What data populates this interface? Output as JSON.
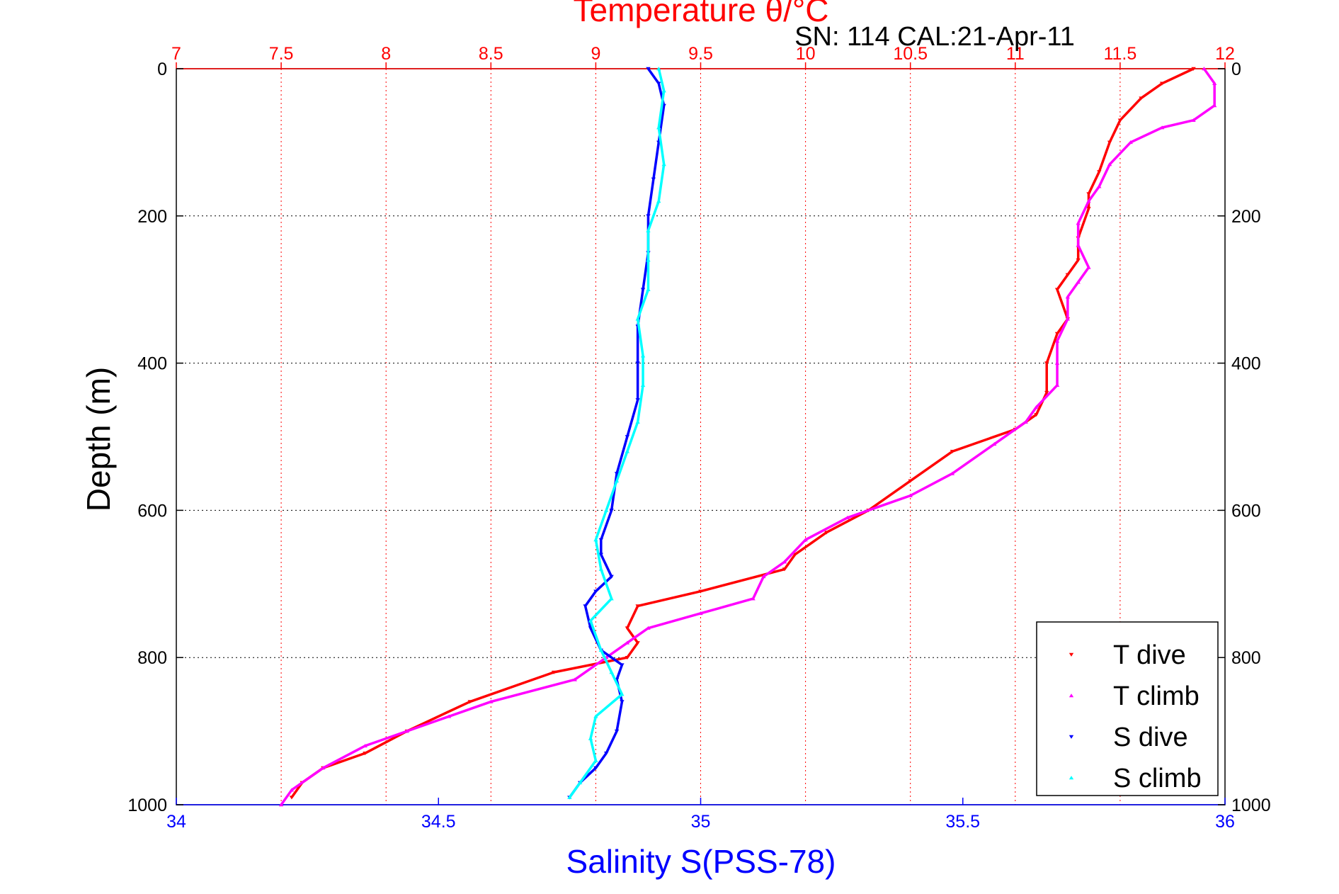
{
  "chart_data": {
    "type": "scatter",
    "title": "Temperature θ/°C",
    "subtitle": "SN: 114  CAL:21-Apr-11",
    "xlabel_bottom": "Salinity S(PSS-78)",
    "xlabel_top": "Temperature θ/°C",
    "ylabel": "Depth (m)",
    "x_bottom_lim": [
      34,
      36
    ],
    "x_top_lim": [
      7,
      12
    ],
    "ylim": [
      0,
      1000
    ],
    "y_reversed": true,
    "x_bottom_ticks": [
      "34",
      "34.5",
      "35",
      "35.5",
      "36"
    ],
    "x_top_ticks": [
      "7",
      "7.5",
      "8",
      "8.5",
      "9",
      "9.5",
      "10",
      "10.5",
      "11",
      "11.5",
      "12"
    ],
    "y_ticks": [
      "0",
      "200",
      "400",
      "600",
      "800",
      "1000"
    ],
    "grid": true,
    "legend_position": "bottom-right",
    "colors": {
      "temperature_axis": "#ff0000",
      "salinity_axis": "#0000ff",
      "T_dive": "#ff0000",
      "T_climb": "#ff00ff",
      "S_dive": "#0000ff",
      "S_climb": "#00ffff"
    },
    "series": [
      {
        "name": "T dive",
        "axis": "temperature",
        "marker": "triangle-down",
        "color": "#ff0000",
        "points": [
          [
            11.85,
            0
          ],
          [
            11.7,
            20
          ],
          [
            11.6,
            40
          ],
          [
            11.5,
            70
          ],
          [
            11.45,
            100
          ],
          [
            11.4,
            140
          ],
          [
            11.35,
            170
          ],
          [
            11.35,
            190
          ],
          [
            11.3,
            230
          ],
          [
            11.3,
            260
          ],
          [
            11.25,
            280
          ],
          [
            11.2,
            300
          ],
          [
            11.25,
            340
          ],
          [
            11.2,
            360
          ],
          [
            11.15,
            400
          ],
          [
            11.15,
            440
          ],
          [
            11.1,
            470
          ],
          [
            11.0,
            490
          ],
          [
            10.7,
            520
          ],
          [
            10.5,
            560
          ],
          [
            10.3,
            600
          ],
          [
            10.1,
            630
          ],
          [
            9.95,
            660
          ],
          [
            9.9,
            680
          ],
          [
            9.5,
            710
          ],
          [
            9.2,
            730
          ],
          [
            9.15,
            760
          ],
          [
            9.2,
            780
          ],
          [
            9.15,
            800
          ],
          [
            8.8,
            820
          ],
          [
            8.4,
            860
          ],
          [
            8.1,
            900
          ],
          [
            7.9,
            930
          ],
          [
            7.7,
            950
          ],
          [
            7.6,
            970
          ],
          [
            7.55,
            990
          ]
        ]
      },
      {
        "name": "T climb",
        "axis": "temperature",
        "marker": "triangle-up",
        "color": "#ff00ff",
        "points": [
          [
            11.9,
            0
          ],
          [
            11.95,
            20
          ],
          [
            11.95,
            50
          ],
          [
            11.85,
            70
          ],
          [
            11.7,
            80
          ],
          [
            11.55,
            100
          ],
          [
            11.45,
            130
          ],
          [
            11.4,
            160
          ],
          [
            11.35,
            180
          ],
          [
            11.3,
            210
          ],
          [
            11.3,
            240
          ],
          [
            11.35,
            270
          ],
          [
            11.3,
            290
          ],
          [
            11.25,
            310
          ],
          [
            11.25,
            340
          ],
          [
            11.2,
            370
          ],
          [
            11.2,
            400
          ],
          [
            11.2,
            430
          ],
          [
            11.1,
            460
          ],
          [
            11.05,
            480
          ],
          [
            10.9,
            510
          ],
          [
            10.7,
            550
          ],
          [
            10.5,
            580
          ],
          [
            10.2,
            610
          ],
          [
            10.0,
            640
          ],
          [
            9.9,
            670
          ],
          [
            9.8,
            690
          ],
          [
            9.75,
            720
          ],
          [
            9.5,
            740
          ],
          [
            9.25,
            760
          ],
          [
            9.15,
            780
          ],
          [
            9.05,
            800
          ],
          [
            8.9,
            830
          ],
          [
            8.5,
            860
          ],
          [
            8.3,
            880
          ],
          [
            8.1,
            900
          ],
          [
            7.9,
            920
          ],
          [
            7.7,
            950
          ],
          [
            7.55,
            980
          ],
          [
            7.5,
            1000
          ]
        ]
      },
      {
        "name": "S dive",
        "axis": "salinity",
        "marker": "triangle-down",
        "color": "#0000ff",
        "points": [
          [
            34.9,
            0
          ],
          [
            34.92,
            20
          ],
          [
            34.93,
            50
          ],
          [
            34.92,
            100
          ],
          [
            34.91,
            150
          ],
          [
            34.9,
            200
          ],
          [
            34.9,
            250
          ],
          [
            34.89,
            300
          ],
          [
            34.88,
            350
          ],
          [
            34.88,
            400
          ],
          [
            34.88,
            450
          ],
          [
            34.86,
            500
          ],
          [
            34.84,
            550
          ],
          [
            34.83,
            600
          ],
          [
            34.81,
            640
          ],
          [
            34.81,
            660
          ],
          [
            34.83,
            690
          ],
          [
            34.8,
            710
          ],
          [
            34.78,
            730
          ],
          [
            34.79,
            760
          ],
          [
            34.81,
            790
          ],
          [
            34.85,
            810
          ],
          [
            34.84,
            830
          ],
          [
            34.85,
            860
          ],
          [
            34.84,
            900
          ],
          [
            34.82,
            930
          ],
          [
            34.8,
            950
          ],
          [
            34.77,
            970
          ],
          [
            34.75,
            990
          ]
        ]
      },
      {
        "name": "S climb",
        "axis": "salinity",
        "marker": "triangle-up",
        "color": "#00ffff",
        "points": [
          [
            34.92,
            0
          ],
          [
            34.93,
            30
          ],
          [
            34.92,
            80
          ],
          [
            34.93,
            130
          ],
          [
            34.92,
            180
          ],
          [
            34.9,
            220
          ],
          [
            34.9,
            260
          ],
          [
            34.9,
            300
          ],
          [
            34.88,
            340
          ],
          [
            34.89,
            390
          ],
          [
            34.89,
            430
          ],
          [
            34.88,
            480
          ],
          [
            34.86,
            520
          ],
          [
            34.84,
            560
          ],
          [
            34.82,
            600
          ],
          [
            34.8,
            640
          ],
          [
            34.81,
            680
          ],
          [
            34.83,
            720
          ],
          [
            34.79,
            750
          ],
          [
            34.81,
            790
          ],
          [
            34.83,
            820
          ],
          [
            34.85,
            850
          ],
          [
            34.8,
            880
          ],
          [
            34.79,
            910
          ],
          [
            34.8,
            940
          ],
          [
            34.77,
            970
          ],
          [
            34.75,
            990
          ]
        ]
      }
    ],
    "legend": [
      "T dive",
      "T climb",
      "S dive",
      "S climb"
    ]
  }
}
